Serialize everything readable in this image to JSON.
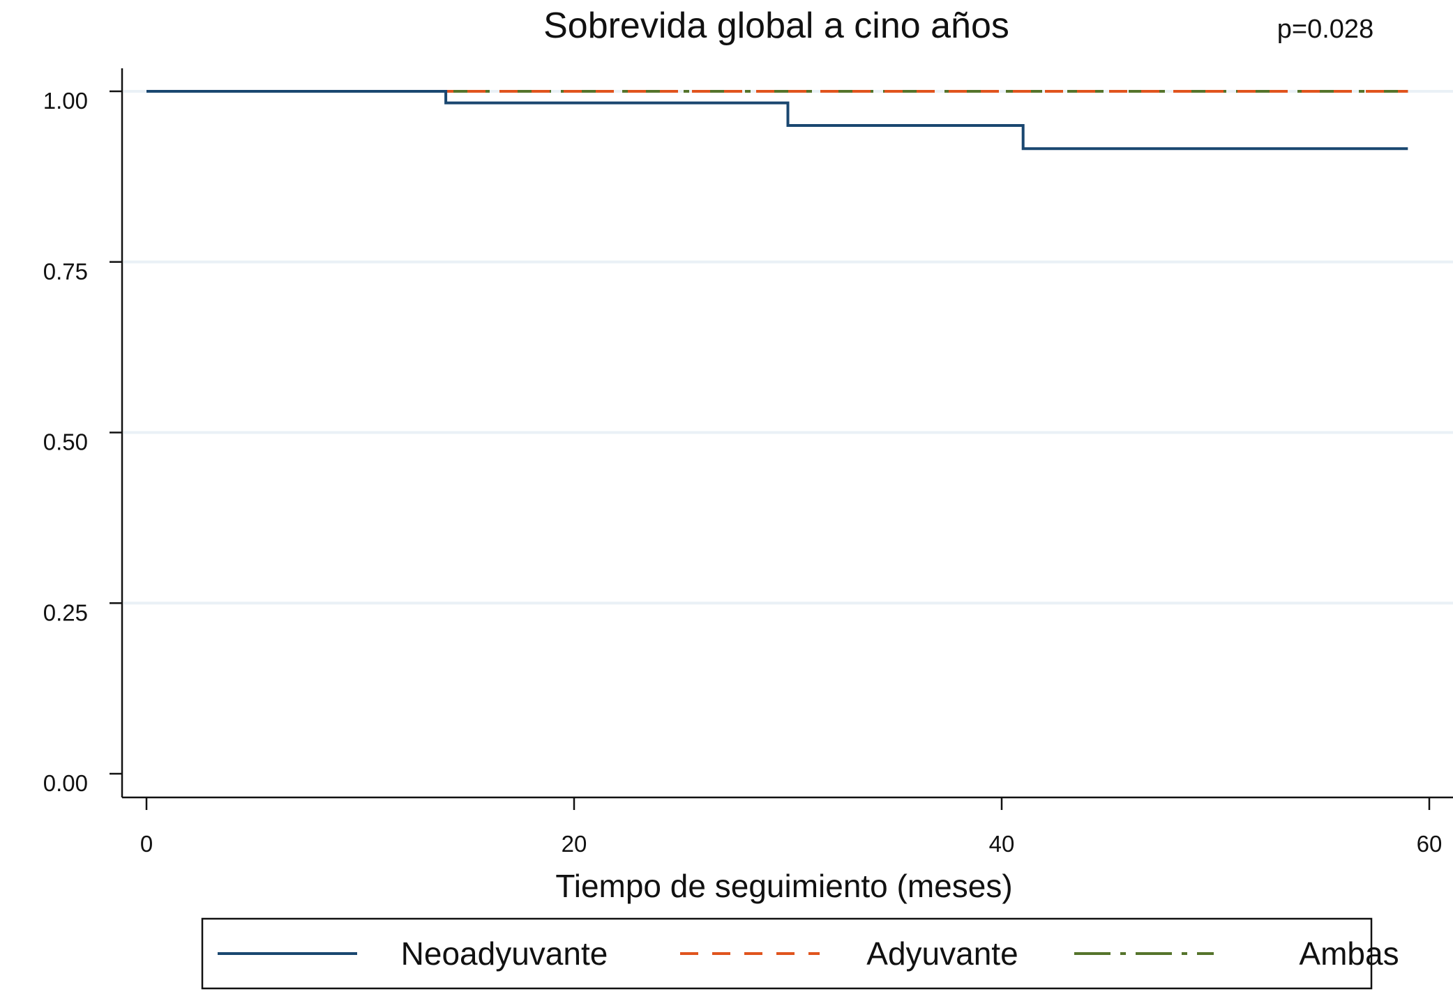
{
  "chart_data": {
    "type": "line",
    "title": "Sobrevida global a cino años",
    "annotation": "p=0.028",
    "xlabel": "Tiempo de seguimiento (meses)",
    "ylabel": "",
    "xlim": [
      0,
      60
    ],
    "ylim": [
      0,
      1
    ],
    "xticks": [
      0,
      20,
      40,
      60
    ],
    "xtick_labels": [
      "0",
      "20",
      "40",
      "60"
    ],
    "yticks": [
      0,
      0.25,
      0.5,
      0.75,
      1
    ],
    "ytick_labels": [
      "0.00",
      "0.25",
      "0.50",
      "0.75",
      "1.00"
    ],
    "grid": true,
    "legend_position": "bottom",
    "series": [
      {
        "name": "Neoadyuvante",
        "color": "#1a4770",
        "style": "solid",
        "x": [
          0,
          14,
          14,
          30,
          30,
          41,
          41,
          59
        ],
        "y": [
          1.0,
          1.0,
          0.983,
          0.983,
          0.95,
          0.95,
          0.916,
          0.916
        ]
      },
      {
        "name": "Adyuvante",
        "color": "#e0541e",
        "style": "dashed",
        "x": [
          0,
          59
        ],
        "y": [
          1.0,
          1.0
        ]
      },
      {
        "name": "Ambas",
        "color": "#55742b",
        "style": "dashdot",
        "x": [
          0,
          59
        ],
        "y": [
          1.0,
          1.0
        ]
      }
    ]
  }
}
